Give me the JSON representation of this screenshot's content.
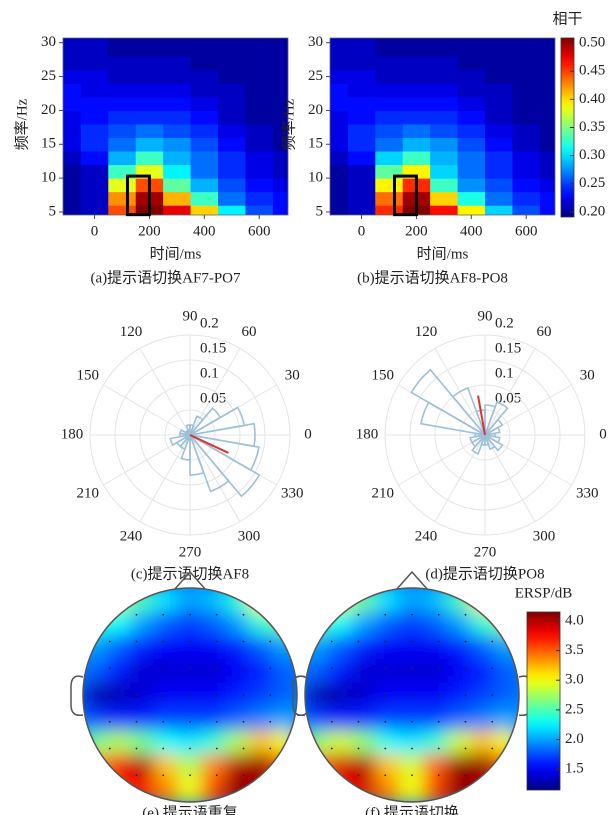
{
  "chart_data": [
    {
      "type": "heatmap",
      "caption": "(a)提示语切换AF7-PO7",
      "xlabel": "时间/ms",
      "ylabel": "频率/Hz",
      "x": [
        -100,
        0,
        100,
        200,
        300,
        400,
        500,
        600,
        700
      ],
      "y": [
        5,
        7,
        9,
        11,
        13,
        15,
        17,
        19,
        21,
        23,
        25,
        27,
        29
      ],
      "values": [
        [
          0.21,
          0.22,
          0.44,
          0.5,
          0.47,
          0.4,
          0.31,
          0.26,
          0.24
        ],
        [
          0.21,
          0.22,
          0.42,
          0.49,
          0.41,
          0.33,
          0.27,
          0.25,
          0.24
        ],
        [
          0.21,
          0.22,
          0.38,
          0.44,
          0.34,
          0.29,
          0.26,
          0.24,
          0.23
        ],
        [
          0.21,
          0.22,
          0.33,
          0.38,
          0.31,
          0.27,
          0.25,
          0.23,
          0.22
        ],
        [
          0.22,
          0.24,
          0.29,
          0.33,
          0.29,
          0.27,
          0.25,
          0.23,
          0.22
        ],
        [
          0.23,
          0.25,
          0.27,
          0.29,
          0.28,
          0.26,
          0.24,
          0.22,
          0.21
        ],
        [
          0.23,
          0.25,
          0.26,
          0.27,
          0.26,
          0.25,
          0.23,
          0.22,
          0.21
        ],
        [
          0.23,
          0.24,
          0.25,
          0.25,
          0.25,
          0.24,
          0.22,
          0.21,
          0.21
        ],
        [
          0.24,
          0.24,
          0.24,
          0.24,
          0.24,
          0.23,
          0.22,
          0.21,
          0.21
        ],
        [
          0.24,
          0.23,
          0.23,
          0.23,
          0.23,
          0.22,
          0.22,
          0.21,
          0.21
        ],
        [
          0.23,
          0.23,
          0.22,
          0.22,
          0.22,
          0.22,
          0.21,
          0.21,
          0.21
        ],
        [
          0.22,
          0.22,
          0.22,
          0.22,
          0.22,
          0.21,
          0.21,
          0.21,
          0.21
        ],
        [
          0.22,
          0.22,
          0.21,
          0.21,
          0.21,
          0.21,
          0.21,
          0.21,
          0.21
        ]
      ],
      "xlim": [
        -115,
        705
      ],
      "ylim": [
        4.55,
        30.7
      ],
      "xticks": [
        0,
        200,
        400,
        600
      ],
      "yticks": [
        5,
        10,
        15,
        20,
        25,
        30
      ],
      "colormap": "jet",
      "clim": [
        0.2,
        0.5
      ],
      "box_x": [
        120,
        200
      ],
      "box_y": [
        4.6,
        10.3
      ]
    },
    {
      "type": "heatmap",
      "caption": "(b)提示语切换AF8-PO8",
      "xlabel": "时间/ms",
      "ylabel": "频率/Hz",
      "x": [
        -100,
        0,
        100,
        200,
        300,
        400,
        500,
        600,
        700
      ],
      "y": [
        5,
        7,
        9,
        11,
        13,
        15,
        17,
        19,
        21,
        23,
        25,
        27,
        29
      ],
      "values": [
        [
          0.21,
          0.22,
          0.45,
          0.5,
          0.46,
          0.39,
          0.3,
          0.26,
          0.24
        ],
        [
          0.21,
          0.22,
          0.43,
          0.49,
          0.4,
          0.32,
          0.27,
          0.25,
          0.24
        ],
        [
          0.21,
          0.22,
          0.39,
          0.45,
          0.33,
          0.28,
          0.26,
          0.24,
          0.23
        ],
        [
          0.21,
          0.22,
          0.34,
          0.39,
          0.3,
          0.27,
          0.25,
          0.23,
          0.22
        ],
        [
          0.22,
          0.24,
          0.3,
          0.33,
          0.29,
          0.27,
          0.25,
          0.23,
          0.22
        ],
        [
          0.23,
          0.25,
          0.27,
          0.29,
          0.28,
          0.26,
          0.24,
          0.22,
          0.21
        ],
        [
          0.23,
          0.25,
          0.26,
          0.27,
          0.26,
          0.25,
          0.23,
          0.22,
          0.21
        ],
        [
          0.23,
          0.24,
          0.25,
          0.25,
          0.25,
          0.24,
          0.22,
          0.21,
          0.21
        ],
        [
          0.24,
          0.24,
          0.24,
          0.24,
          0.24,
          0.23,
          0.22,
          0.21,
          0.21
        ],
        [
          0.24,
          0.23,
          0.23,
          0.23,
          0.23,
          0.22,
          0.22,
          0.21,
          0.21
        ],
        [
          0.23,
          0.23,
          0.22,
          0.22,
          0.22,
          0.22,
          0.21,
          0.21,
          0.21
        ],
        [
          0.22,
          0.22,
          0.22,
          0.22,
          0.22,
          0.21,
          0.21,
          0.21,
          0.21
        ],
        [
          0.22,
          0.22,
          0.21,
          0.21,
          0.21,
          0.21,
          0.21,
          0.21,
          0.21
        ]
      ],
      "xlim": [
        -115,
        705
      ],
      "ylim": [
        4.55,
        30.7
      ],
      "xticks": [
        0,
        200,
        400,
        600
      ],
      "yticks": [
        5,
        10,
        15,
        20,
        25,
        30
      ],
      "colormap": "jet",
      "clim": [
        0.2,
        0.5
      ],
      "box_x": [
        120,
        200
      ],
      "box_y": [
        4.6,
        10.3
      ]
    },
    {
      "type": "colorbar",
      "title": "相干",
      "ylim": [
        0.191,
        0.509
      ],
      "colormap": "jet",
      "yticks": [
        {
          "value": 0.2,
          "label": "0.20"
        },
        0.25,
        {
          "value": 0.3,
          "label": "0.30"
        },
        0.35,
        {
          "value": 0.4,
          "label": "0.40"
        },
        0.45,
        {
          "value": 0.5,
          "label": "0.50"
        }
      ]
    },
    {
      "type": "polar_histogram",
      "caption": "(c)提示语切换AF8",
      "color": "#9cc0d8",
      "angles": [
        0,
        20,
        40,
        60,
        80,
        100,
        120,
        140,
        160,
        180,
        200,
        220,
        240,
        260,
        280,
        300,
        320,
        340
      ],
      "values": [
        0.13,
        0.11,
        0.07,
        0.04,
        0.02,
        0.02,
        0.01,
        0.01,
        0.02,
        0.02,
        0.04,
        0.03,
        0.03,
        0.05,
        0.08,
        0.12,
        0.16,
        0.14
      ],
      "rlim": [
        0,
        0.2
      ],
      "rticks": [
        0.05,
        0.1,
        0.15,
        0.2
      ],
      "angle_ticks": [
        0,
        30,
        60,
        90,
        120,
        150,
        180,
        210,
        240,
        270,
        300,
        330
      ],
      "mean_vector": {
        "angle": 335,
        "length": 0.085,
        "color": "#e03030"
      }
    },
    {
      "type": "polar_histogram",
      "caption": "(d)提示语切换PO8",
      "color": "#9cc0d8",
      "angles": [
        0,
        20,
        40,
        60,
        80,
        100,
        120,
        140,
        160,
        180,
        200,
        220,
        240,
        260,
        280,
        300,
        320,
        340
      ],
      "values": [
        0.02,
        0.03,
        0.04,
        0.07,
        0.06,
        0.05,
        0.1,
        0.17,
        0.13,
        0.02,
        0.03,
        0.03,
        0.04,
        0.02,
        0.02,
        0.03,
        0.04,
        0.03
      ],
      "rlim": [
        0,
        0.2
      ],
      "rticks": [
        0.05,
        0.1,
        0.15,
        0.2
      ],
      "angle_ticks": [
        0,
        30,
        60,
        90,
        120,
        150,
        180,
        210,
        240,
        270,
        300,
        330
      ],
      "mean_vector": {
        "angle": 100,
        "length": 0.08,
        "color": "#e03030"
      }
    },
    {
      "type": "topomap",
      "caption": "(e) 提示语重复",
      "colormap": "jet",
      "clim": [
        1.15,
        4.15
      ],
      "values": [
        [
          2.6,
          2.8,
          2.5,
          2.2,
          2.0,
          2.1,
          2.4,
          3.0,
          3.2
        ],
        [
          2.4,
          2.3,
          2.0,
          1.8,
          1.7,
          1.8,
          2.0,
          2.4,
          2.6
        ],
        [
          2.0,
          1.8,
          1.6,
          1.5,
          1.5,
          1.5,
          1.6,
          1.8,
          2.0
        ],
        [
          1.8,
          1.6,
          1.4,
          1.4,
          1.4,
          1.4,
          1.5,
          1.6,
          1.8
        ],
        [
          1.3,
          1.3,
          1.4,
          1.5,
          1.5,
          1.5,
          1.6,
          1.7,
          1.8
        ],
        [
          1.7,
          1.6,
          1.6,
          1.7,
          1.7,
          1.7,
          1.8,
          1.9,
          2.0
        ],
        [
          2.6,
          2.8,
          2.6,
          2.3,
          2.2,
          2.4,
          2.8,
          3.2,
          3.0
        ],
        [
          3.4,
          3.8,
          4.0,
          3.2,
          2.8,
          3.4,
          4.0,
          4.1,
          3.6
        ],
        [
          3.0,
          3.6,
          3.8,
          3.4,
          3.0,
          3.6,
          4.1,
          4.0,
          3.4
        ]
      ]
    },
    {
      "type": "topomap",
      "caption": "(f) 提示语切换",
      "colormap": "jet",
      "clim": [
        1.15,
        4.15
      ],
      "values": [
        [
          2.7,
          2.9,
          2.6,
          2.2,
          2.0,
          2.1,
          2.5,
          3.1,
          3.3
        ],
        [
          2.5,
          2.3,
          2.0,
          1.8,
          1.7,
          1.8,
          2.0,
          2.4,
          2.7
        ],
        [
          2.0,
          1.8,
          1.6,
          1.5,
          1.5,
          1.5,
          1.6,
          1.8,
          2.0
        ],
        [
          1.8,
          1.6,
          1.4,
          1.4,
          1.4,
          1.4,
          1.5,
          1.6,
          1.8
        ],
        [
          1.3,
          1.3,
          1.4,
          1.5,
          1.5,
          1.5,
          1.6,
          1.7,
          1.8
        ],
        [
          1.7,
          1.6,
          1.6,
          1.7,
          1.7,
          1.7,
          1.8,
          1.9,
          2.0
        ],
        [
          2.7,
          2.9,
          2.7,
          2.3,
          2.2,
          2.4,
          2.9,
          3.2,
          3.0
        ],
        [
          3.5,
          3.9,
          4.0,
          3.2,
          2.9,
          3.5,
          4.1,
          4.1,
          3.6
        ],
        [
          3.1,
          3.7,
          3.9,
          3.4,
          3.0,
          3.6,
          4.1,
          4.0,
          3.4
        ]
      ]
    },
    {
      "type": "colorbar",
      "title": "ERSP/dB",
      "ylim": [
        1.15,
        4.15
      ],
      "colormap": "jet",
      "yticks": [
        1.5,
        {
          "value": 2,
          "label": "2.0"
        },
        2.5,
        {
          "value": 3,
          "label": "3.0"
        },
        3.5,
        {
          "value": 4,
          "label": "4.0"
        }
      ]
    }
  ]
}
